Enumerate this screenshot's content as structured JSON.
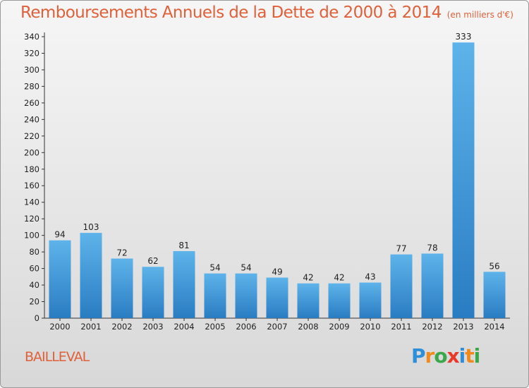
{
  "header": {
    "title": "Remboursements Annuels de la Dette de 2000 à 2014",
    "subtitle": "(en milliers d'€)"
  },
  "footer": {
    "commune": "BAILLEVAL",
    "brand": {
      "letters": [
        {
          "char": "P",
          "color": "#2e8fd8"
        },
        {
          "char": "r",
          "color": "#f08a1c"
        },
        {
          "char": "o",
          "color": "#3aa84a"
        },
        {
          "char": "x",
          "color": "#e83a2a"
        },
        {
          "char": "i",
          "color": "#2e8fd8"
        },
        {
          "char": "t",
          "color": "#f08a1c"
        },
        {
          "char": "i",
          "color": "#3aa84a"
        }
      ]
    }
  },
  "colors": {
    "bar_top": "#5eb3ea",
    "bar_bottom": "#2a7cc2",
    "accent": "#e0603a"
  },
  "chart_data": {
    "type": "bar",
    "categories": [
      "2000",
      "2001",
      "2002",
      "2003",
      "2004",
      "2005",
      "2006",
      "2007",
      "2008",
      "2009",
      "2010",
      "2011",
      "2012",
      "2013",
      "2014"
    ],
    "values": [
      94,
      103,
      72,
      62,
      81,
      54,
      54,
      49,
      42,
      42,
      43,
      77,
      78,
      333,
      56
    ],
    "ylim": [
      0,
      340
    ],
    "yticks": [
      0,
      20,
      40,
      60,
      80,
      100,
      120,
      140,
      160,
      180,
      200,
      220,
      240,
      260,
      280,
      300,
      320,
      340
    ],
    "grid": false,
    "data_labels": true
  }
}
